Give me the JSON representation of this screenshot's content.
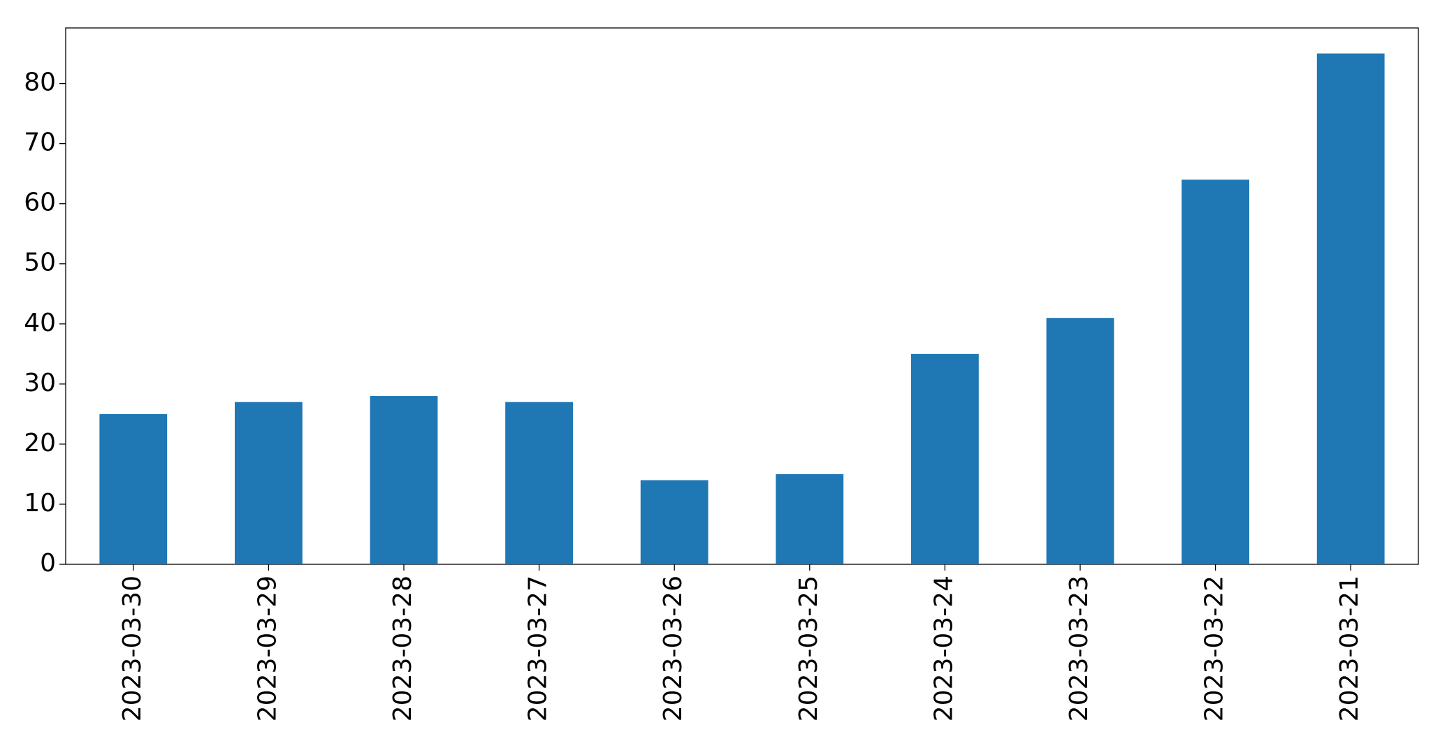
{
  "chart_data": {
    "type": "bar",
    "categories": [
      "2023-03-30",
      "2023-03-29",
      "2023-03-28",
      "2023-03-27",
      "2023-03-26",
      "2023-03-25",
      "2023-03-24",
      "2023-03-23",
      "2023-03-22",
      "2023-03-21"
    ],
    "values": [
      25,
      27,
      28,
      27,
      14,
      15,
      35,
      41,
      64,
      85
    ],
    "color": "#1f77b4",
    "ylim": [
      0,
      89.25
    ],
    "yticks": [
      0,
      10,
      20,
      30,
      40,
      50,
      60,
      70,
      80
    ],
    "grid": false
  }
}
